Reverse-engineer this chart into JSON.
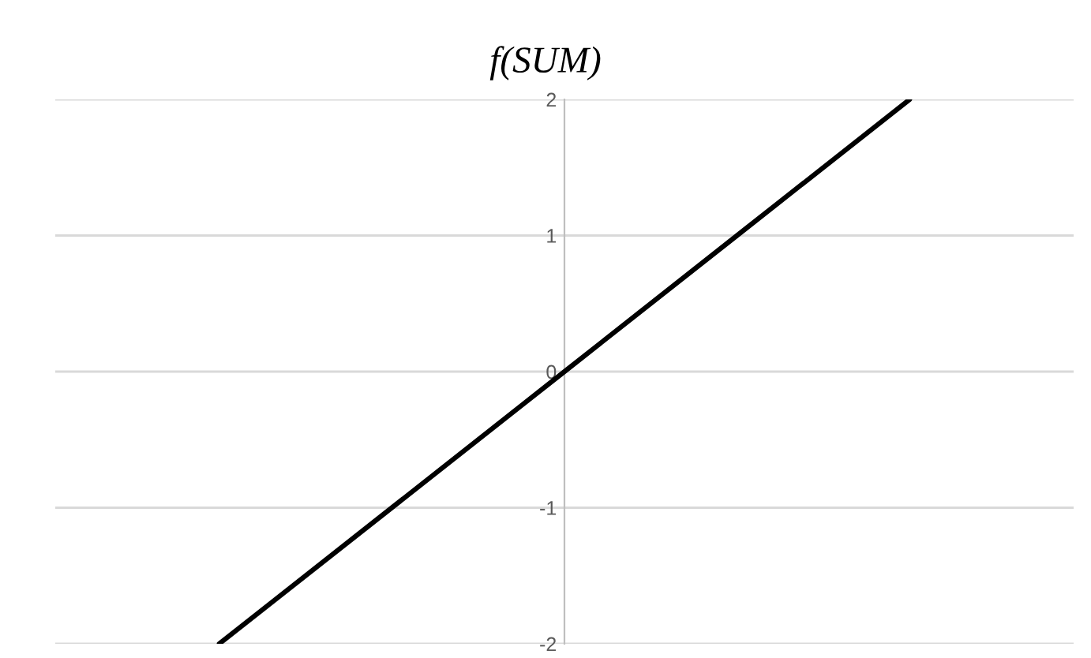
{
  "chart_data": {
    "type": "line",
    "title": "f(SUM)",
    "categories": [
      null,
      null,
      null,
      null,
      null
    ],
    "series": [
      {
        "color": "#000000",
        "values": [
          -2,
          -1,
          0,
          1,
          2
        ]
      }
    ],
    "ylim": [
      -2,
      2
    ],
    "yticks": [
      -2,
      -1,
      0,
      1,
      2
    ],
    "grid": "y",
    "tick_labels": "y",
    "marker": "none",
    "line_style": "solid"
  }
}
